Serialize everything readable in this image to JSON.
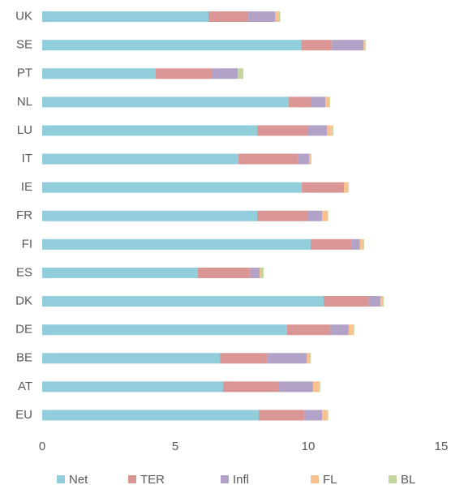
{
  "chart_data": {
    "type": "stacked_barh",
    "categories": [
      "UK",
      "SE",
      "PT",
      "NL",
      "LU",
      "IT",
      "IE",
      "FR",
      "FI",
      "ES",
      "DK",
      "DE",
      "BE",
      "AT",
      "EU"
    ],
    "series": [
      {
        "name": "Net",
        "color": "#92cddc",
        "values": [
          6.25,
          9.73,
          4.27,
          9.27,
          8.08,
          7.38,
          9.76,
          8.08,
          10.09,
          5.85,
          10.58,
          9.2,
          6.68,
          6.8,
          8.14
        ]
      },
      {
        "name": "TER",
        "color": "#d99694",
        "values": [
          1.5,
          1.15,
          2.13,
          0.85,
          1.92,
          2.25,
          1.58,
          1.92,
          1.55,
          1.98,
          1.7,
          1.62,
          1.77,
          2.1,
          1.71
        ]
      },
      {
        "name": "Infl",
        "color": "#b3a2c7",
        "values": [
          1.0,
          1.2,
          0.95,
          0.52,
          0.7,
          0.4,
          0,
          0.52,
          0.3,
          0.34,
          0.43,
          0.7,
          1.5,
          1.28,
          0.67
        ]
      },
      {
        "name": "FL",
        "color": "#fac090",
        "values": [
          0.15,
          0.03,
          0.03,
          0.15,
          0.18,
          0.06,
          0.15,
          0.2,
          0.1,
          0.03,
          0.1,
          0.18,
          0.12,
          0.24,
          0.2
        ]
      },
      {
        "name": "BL",
        "color": "#c3d69b",
        "values": [
          0.05,
          0.05,
          0.18,
          0.03,
          0.06,
          0.03,
          0.03,
          0.03,
          0.06,
          0.12,
          0.03,
          0.03,
          0.03,
          0.03,
          0.03
        ]
      }
    ],
    "xlim": [
      0,
      15
    ],
    "xticks": [
      0,
      5,
      10,
      15
    ],
    "grid": false,
    "legend": "bottom"
  }
}
